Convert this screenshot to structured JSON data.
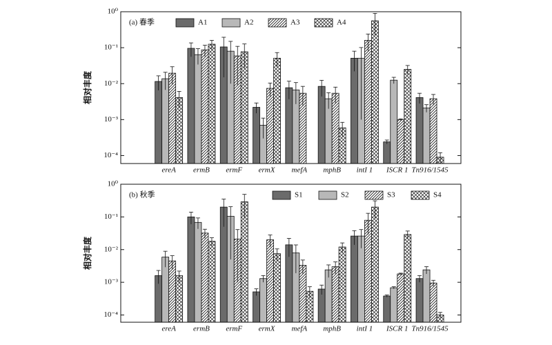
{
  "chart_data": [
    {
      "type": "bar",
      "title": "(a) 春季",
      "y_label": "相对丰度",
      "log_scale": true,
      "legend": "upper center",
      "categories": [
        "ereA",
        "ermB",
        "ermF",
        "ermX",
        "mefA",
        "mphB",
        "intI 1",
        "ISCR 1",
        "Tn916/1545"
      ],
      "ylim": [
        6e-05,
        1
      ],
      "yticks": [
        {
          "value": 0.0001,
          "label": "10⁻⁴"
        },
        {
          "value": 0.001,
          "label": "10⁻³"
        },
        {
          "value": 0.01,
          "label": "10⁻²"
        },
        {
          "value": 0.1,
          "label": "10⁻¹"
        },
        {
          "value": 1,
          "label": "10⁰"
        }
      ],
      "series": [
        {
          "name": "A1",
          "color": "#6b6b6b",
          "pattern": "solid",
          "values": [
            0.0115,
            0.096,
            0.105,
            0.0022,
            0.0077,
            0.0084,
            0.051,
            0.00024,
            0.0041
          ],
          "errors": [
            0.005,
            0.04,
            0.09,
            0.0007,
            0.004,
            0.004,
            0.029,
            3e-05,
            0.0013
          ]
        },
        {
          "name": "A2",
          "color": "#b8b8b8",
          "pattern": "solid",
          "values": [
            0.0137,
            0.064,
            0.08,
            0.0007,
            0.0067,
            0.0038,
            0.051,
            0.0125,
            0.0021
          ],
          "errors": [
            0.007,
            0.03,
            0.07,
            0.0004,
            0.004,
            0.0018,
            0.05,
            0.0025,
            0.0005
          ]
        },
        {
          "name": "A3",
          "color": "#ffffff",
          "pattern": "hatch",
          "values": [
            0.0195,
            0.087,
            0.059,
            0.0074,
            0.0054,
            0.0054,
            0.16,
            0.001,
            0.0038
          ],
          "errors": [
            0.01,
            0.03,
            0.05,
            0.003,
            0.003,
            0.0026,
            0.08,
            5e-05,
            0.0012
          ]
        },
        {
          "name": "A4",
          "color": "#ffffff",
          "pattern": "crosshatch",
          "values": [
            0.0041,
            0.125,
            0.077,
            0.051,
            null,
            0.00059,
            0.56,
            0.025,
            9e-05
          ],
          "errors": [
            0.002,
            0.035,
            0.05,
            0.022,
            null,
            0.00025,
            0.34,
            0.007,
            3e-05
          ]
        }
      ]
    },
    {
      "type": "bar",
      "title": "(b) 秋季",
      "y_label": "相对丰度",
      "log_scale": true,
      "legend": "upper right",
      "categories": [
        "ereA",
        "ermB",
        "ermF",
        "ermX",
        "mefA",
        "mphB",
        "intI 1",
        "ISCR 1",
        "Tn916/1545"
      ],
      "ylim": [
        6e-05,
        1
      ],
      "yticks": [
        {
          "value": 0.0001,
          "label": "10⁻⁴"
        },
        {
          "value": 0.001,
          "label": "10⁻³"
        },
        {
          "value": 0.01,
          "label": "10⁻²"
        },
        {
          "value": 0.1,
          "label": "10⁻¹"
        },
        {
          "value": 1,
          "label": "10⁰"
        }
      ],
      "series": [
        {
          "name": "S1",
          "color": "#6b6b6b",
          "pattern": "solid",
          "values": [
            0.0016,
            0.1,
            0.2,
            0.00051,
            0.014,
            0.00062,
            0.026,
            0.00038,
            0.0013
          ],
          "errors": [
            0.0007,
            0.04,
            0.15,
            0.00012,
            0.008,
            0.0002,
            0.012,
            3e-05,
            0.0003
          ]
        },
        {
          "name": "S2",
          "color": "#b8b8b8",
          "pattern": "solid",
          "values": [
            0.0059,
            0.068,
            0.105,
            0.0013,
            0.0079,
            0.0024,
            0.026,
            0.00068,
            0.0024
          ],
          "errors": [
            0.003,
            0.025,
            0.1,
            0.0003,
            0.006,
            0.001,
            0.015,
            5e-05,
            0.0006
          ]
        },
        {
          "name": "S3",
          "color": "#ffffff",
          "pattern": "hatch",
          "values": [
            0.0045,
            0.032,
            0.021,
            0.02,
            0.0033,
            0.003,
            0.079,
            0.0018,
            0.00095
          ],
          "errors": [
            0.002,
            0.01,
            0.02,
            0.008,
            0.0015,
            0.0012,
            0.05,
            0.0001,
            0.0002
          ]
        },
        {
          "name": "S4",
          "color": "#ffffff",
          "pattern": "crosshatch",
          "values": [
            0.0016,
            0.018,
            0.29,
            0.0075,
            0.00053,
            0.012,
            0.2,
            0.029,
            0.0001
          ],
          "errors": [
            0.0006,
            0.005,
            0.2,
            0.003,
            0.0002,
            0.004,
            0.11,
            0.008,
            2e-05
          ]
        }
      ]
    }
  ]
}
